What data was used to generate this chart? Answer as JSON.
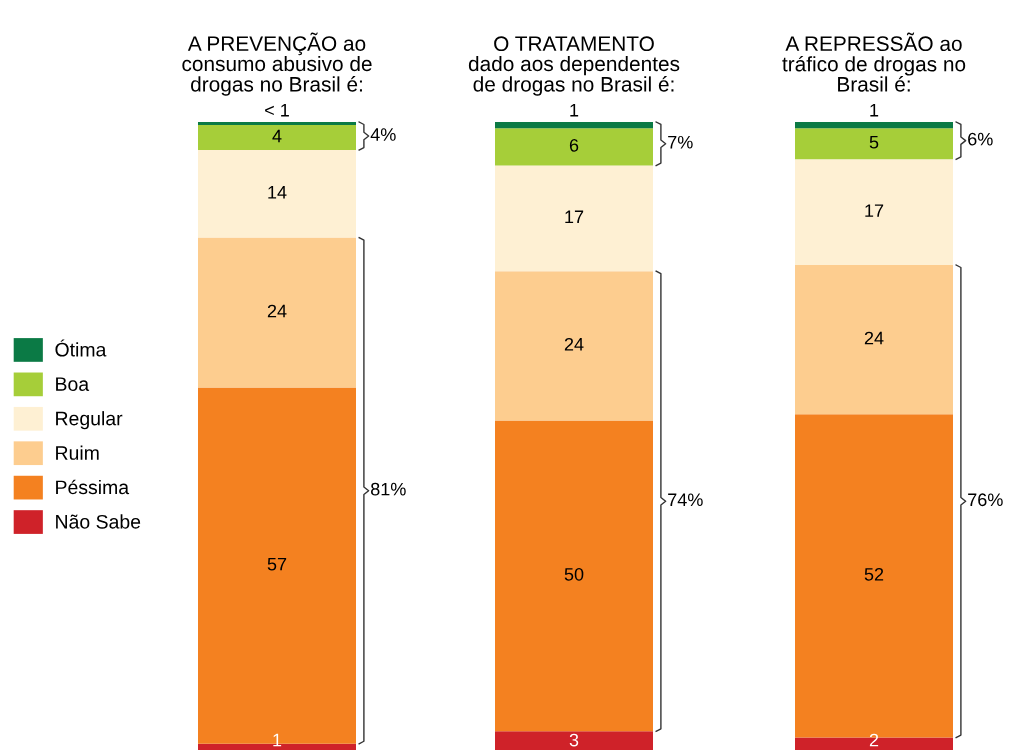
{
  "chart_data": [
    {
      "type": "bar",
      "title": "A PREVENÇÃO ao\nconsumo abusivo de\ndrogas no Brasil é:",
      "categories": [
        null
      ],
      "stacked": true,
      "data_labels": true,
      "legend": "left",
      "tick_labels": false,
      "series": [
        {
          "name": "Não Sabe",
          "color": "#cf2229",
          "values": [
            1
          ]
        },
        {
          "name": "Péssima",
          "color": "#f48120",
          "values": [
            57
          ]
        },
        {
          "name": "Ruim",
          "color": "#fdcd8f",
          "values": [
            24
          ]
        },
        {
          "name": "Regular",
          "color": "#fef0d3",
          "values": [
            14
          ]
        },
        {
          "name": "Boa",
          "color": "#a6ce39",
          "values": [
            4
          ]
        },
        {
          "name": "Ótima",
          "color": "#0b7a45",
          "values": [
            0.5
          ],
          "value_labels": [
            "< 1"
          ]
        }
      ],
      "annotations": [
        "4%",
        "81%"
      ]
    },
    {
      "type": "bar",
      "title": "O TRATAMENTO\ndado aos dependentes\nde drogas no Brasil é:",
      "categories": [
        null
      ],
      "stacked": true,
      "data_labels": true,
      "tick_labels": false,
      "series": [
        {
          "color": "#cf2229",
          "values": [
            3
          ]
        },
        {
          "color": "#f48120",
          "values": [
            50
          ]
        },
        {
          "color": "#fdcd8f",
          "values": [
            24
          ]
        },
        {
          "color": "#fef0d3",
          "values": [
            17
          ]
        },
        {
          "color": "#a6ce39",
          "values": [
            6
          ]
        },
        {
          "color": "#0b7a45",
          "values": [
            1
          ]
        }
      ],
      "annotations": [
        "7%",
        "74%"
      ]
    },
    {
      "type": "bar",
      "title": "A REPRESSÃO ao\ntráfico de drogas no\nBrasil é:",
      "categories": [
        null
      ],
      "stacked": true,
      "data_labels": true,
      "tick_labels": false,
      "series": [
        {
          "color": "#cf2229",
          "values": [
            2
          ]
        },
        {
          "color": "#f48120",
          "values": [
            52
          ]
        },
        {
          "color": "#fdcd8f",
          "values": [
            24
          ]
        },
        {
          "color": "#fef0d3",
          "values": [
            17
          ]
        },
        {
          "color": "#a6ce39",
          "values": [
            5
          ]
        },
        {
          "color": "#0b7a45",
          "values": [
            1
          ]
        }
      ],
      "annotations": [
        "6%",
        "76%"
      ]
    }
  ]
}
